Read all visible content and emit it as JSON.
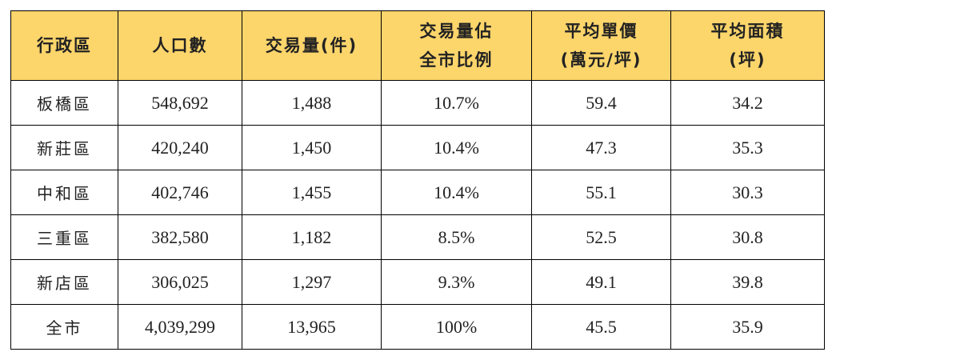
{
  "table": {
    "header": [
      [
        "行政區"
      ],
      [
        "人口數"
      ],
      [
        "交易量(件)"
      ],
      [
        "交易量佔",
        "全市比例"
      ],
      [
        "平均單價",
        "(萬元/坪)"
      ],
      [
        "平均面積",
        "(坪)"
      ]
    ],
    "rows": [
      [
        "板橋區",
        "548,692",
        "1,488",
        "10.7%",
        "59.4",
        "34.2"
      ],
      [
        "新莊區",
        "420,240",
        "1,450",
        "10.4%",
        "47.3",
        "35.3"
      ],
      [
        "中和區",
        "402,746",
        "1,455",
        "10.4%",
        "55.1",
        "30.3"
      ],
      [
        "三重區",
        "382,580",
        "1,182",
        "8.5%",
        "52.5",
        "30.8"
      ],
      [
        "新店區",
        "306,025",
        "1,297",
        "9.3%",
        "49.1",
        "39.8"
      ],
      [
        "全市",
        "4,039,299",
        "13,965",
        "100%",
        "45.5",
        "35.9"
      ]
    ]
  }
}
